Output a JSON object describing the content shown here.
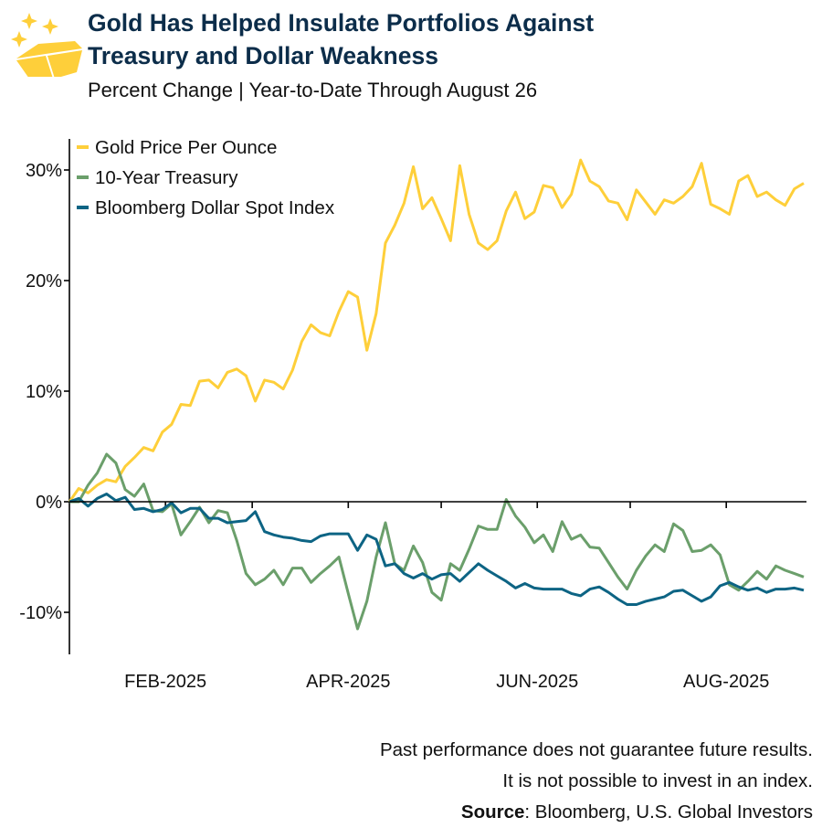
{
  "header": {
    "title_line1": "Gold Has Helped Insulate Portfolios Against",
    "title_line2": "Treasury and Dollar Weakness",
    "subtitle": "Percent Change | Year-to-Date Through August 26",
    "logo_icon": "gold-bar-sparkles-icon"
  },
  "footer": {
    "line1": "Past performance does not guarantee future results.",
    "line2": "It is not possible to invest in an index.",
    "source_label": "Source",
    "source_text": ": Bloomberg, U.S. Global Investors"
  },
  "chart_data": {
    "type": "line",
    "title": "Gold Has Helped Insulate Portfolios Against Treasury and Dollar Weakness",
    "subtitle": "Percent Change | Year-to-Date Through August 26",
    "xlabel": "",
    "ylabel": "",
    "xlim": [
      "2025-01-01",
      "2025-08-26"
    ],
    "ylim": [
      -13.5,
      33
    ],
    "yticks": [
      30,
      20,
      10,
      0,
      -10
    ],
    "ytick_labels": [
      "30%",
      "20%",
      "10%",
      "0%",
      "-10%"
    ],
    "xtick_labels": [
      {
        "date": "2025-02-01",
        "label": "FEB-2025"
      },
      {
        "date": "2025-04-01",
        "label": "APR-2025"
      },
      {
        "date": "2025-06-01",
        "label": "JUN-2025"
      },
      {
        "date": "2025-08-01",
        "label": "AUG-2025"
      }
    ],
    "grid": false,
    "legend_position": "top-left",
    "x": [
      "2025-01-01",
      "2025-01-04",
      "2025-01-07",
      "2025-01-10",
      "2025-01-13",
      "2025-01-16",
      "2025-01-19",
      "2025-01-22",
      "2025-01-25",
      "2025-01-28",
      "2025-01-31",
      "2025-02-03",
      "2025-02-06",
      "2025-02-09",
      "2025-02-12",
      "2025-02-15",
      "2025-02-18",
      "2025-02-21",
      "2025-02-24",
      "2025-02-27",
      "2025-03-02",
      "2025-03-05",
      "2025-03-08",
      "2025-03-11",
      "2025-03-14",
      "2025-03-17",
      "2025-03-20",
      "2025-03-23",
      "2025-03-26",
      "2025-03-29",
      "2025-04-01",
      "2025-04-04",
      "2025-04-07",
      "2025-04-10",
      "2025-04-13",
      "2025-04-16",
      "2025-04-19",
      "2025-04-22",
      "2025-04-25",
      "2025-04-28",
      "2025-05-01",
      "2025-05-04",
      "2025-05-07",
      "2025-05-10",
      "2025-05-13",
      "2025-05-16",
      "2025-05-19",
      "2025-05-22",
      "2025-05-25",
      "2025-05-28",
      "2025-05-31",
      "2025-06-03",
      "2025-06-06",
      "2025-06-09",
      "2025-06-12",
      "2025-06-15",
      "2025-06-18",
      "2025-06-21",
      "2025-06-24",
      "2025-06-27",
      "2025-06-30",
      "2025-07-03",
      "2025-07-06",
      "2025-07-09",
      "2025-07-12",
      "2025-07-15",
      "2025-07-18",
      "2025-07-21",
      "2025-07-24",
      "2025-07-27",
      "2025-07-30",
      "2025-08-02",
      "2025-08-05",
      "2025-08-08",
      "2025-08-11",
      "2025-08-14",
      "2025-08-17",
      "2025-08-20",
      "2025-08-23",
      "2025-08-26"
    ],
    "series": [
      {
        "name": "Gold Price Per Ounce",
        "color": "#fecf3a",
        "values": [
          0,
          1.2,
          0.8,
          1.5,
          2.0,
          1.8,
          3.2,
          4.0,
          4.9,
          4.6,
          6.3,
          7.0,
          8.8,
          8.7,
          10.9,
          11.0,
          10.3,
          11.7,
          12.0,
          11.4,
          9.1,
          11.0,
          10.8,
          10.2,
          11.9,
          14.5,
          16.0,
          15.3,
          15.0,
          17.2,
          19.0,
          18.5,
          13.7,
          17.0,
          23.4,
          25.0,
          27.0,
          30.3,
          26.5,
          27.5,
          25.6,
          23.6,
          30.4,
          26.0,
          23.4,
          22.8,
          23.6,
          26.3,
          28.0,
          25.6,
          26.2,
          28.6,
          28.4,
          26.6,
          27.8,
          30.9,
          29.0,
          28.5,
          27.2,
          27.0,
          25.5,
          28.2,
          27.1,
          26.0,
          27.3,
          27.0,
          27.6,
          28.5,
          30.6,
          26.9,
          26.5,
          26.0,
          29.0,
          29.5,
          27.6,
          28.0,
          27.3,
          26.8,
          28.3,
          28.8
        ]
      },
      {
        "name": "10-Year Treasury",
        "color": "#6b9f6b",
        "values": [
          0,
          0,
          1.5,
          2.6,
          4.3,
          3.5,
          1.1,
          0.5,
          1.6,
          -0.8,
          -0.9,
          -0.2,
          -3.0,
          -1.8,
          -0.5,
          -1.9,
          -0.8,
          -1.0,
          -3.5,
          -6.5,
          -7.5,
          -7.0,
          -6.2,
          -7.5,
          -6.0,
          -6.0,
          -7.3,
          -6.5,
          -5.8,
          -5.0,
          -8.3,
          -11.5,
          -9.0,
          -5.0,
          -1.9,
          -5.6,
          -6.2,
          -4.0,
          -5.5,
          -8.2,
          -8.9,
          -5.6,
          -6.2,
          -4.3,
          -2.2,
          -2.5,
          -2.5,
          0.2,
          -1.3,
          -2.3,
          -3.7,
          -3.0,
          -4.5,
          -1.8,
          -3.4,
          -3.0,
          -4.1,
          -4.2,
          -5.5,
          -6.8,
          -7.9,
          -6.2,
          -4.9,
          -3.9,
          -4.5,
          -2.0,
          -2.6,
          -4.5,
          -4.4,
          -3.9,
          -4.8,
          -7.5,
          -8.0,
          -7.2,
          -6.3,
          -7.0,
          -5.8,
          -6.2,
          -6.5,
          -6.8
        ]
      },
      {
        "name": "Bloomberg Dollar Spot Index",
        "color": "#0d6484",
        "values": [
          0,
          0.3,
          -0.4,
          0.3,
          0.7,
          0.1,
          0.4,
          -0.7,
          -0.6,
          -0.9,
          -0.7,
          -0.1,
          -1.0,
          -0.6,
          -0.6,
          -1.5,
          -1.5,
          -1.9,
          -1.8,
          -1.7,
          -0.9,
          -2.7,
          -3.0,
          -3.2,
          -3.3,
          -3.5,
          -3.6,
          -3.1,
          -2.9,
          -2.9,
          -2.9,
          -4.4,
          -3.0,
          -3.4,
          -5.8,
          -5.6,
          -6.5,
          -6.9,
          -6.5,
          -7.0,
          -6.6,
          -6.5,
          -7.2,
          -6.4,
          -5.6,
          -6.2,
          -6.7,
          -7.2,
          -7.8,
          -7.4,
          -7.8,
          -7.9,
          -7.9,
          -7.9,
          -8.3,
          -8.5,
          -7.9,
          -7.7,
          -8.2,
          -8.8,
          -9.3,
          -9.3,
          -9.0,
          -8.8,
          -8.6,
          -8.1,
          -8.0,
          -8.5,
          -9.0,
          -8.6,
          -7.6,
          -7.3,
          -7.7,
          -8.0,
          -7.8,
          -8.2,
          -7.9,
          -7.9,
          -7.8,
          -8.0
        ]
      }
    ]
  }
}
